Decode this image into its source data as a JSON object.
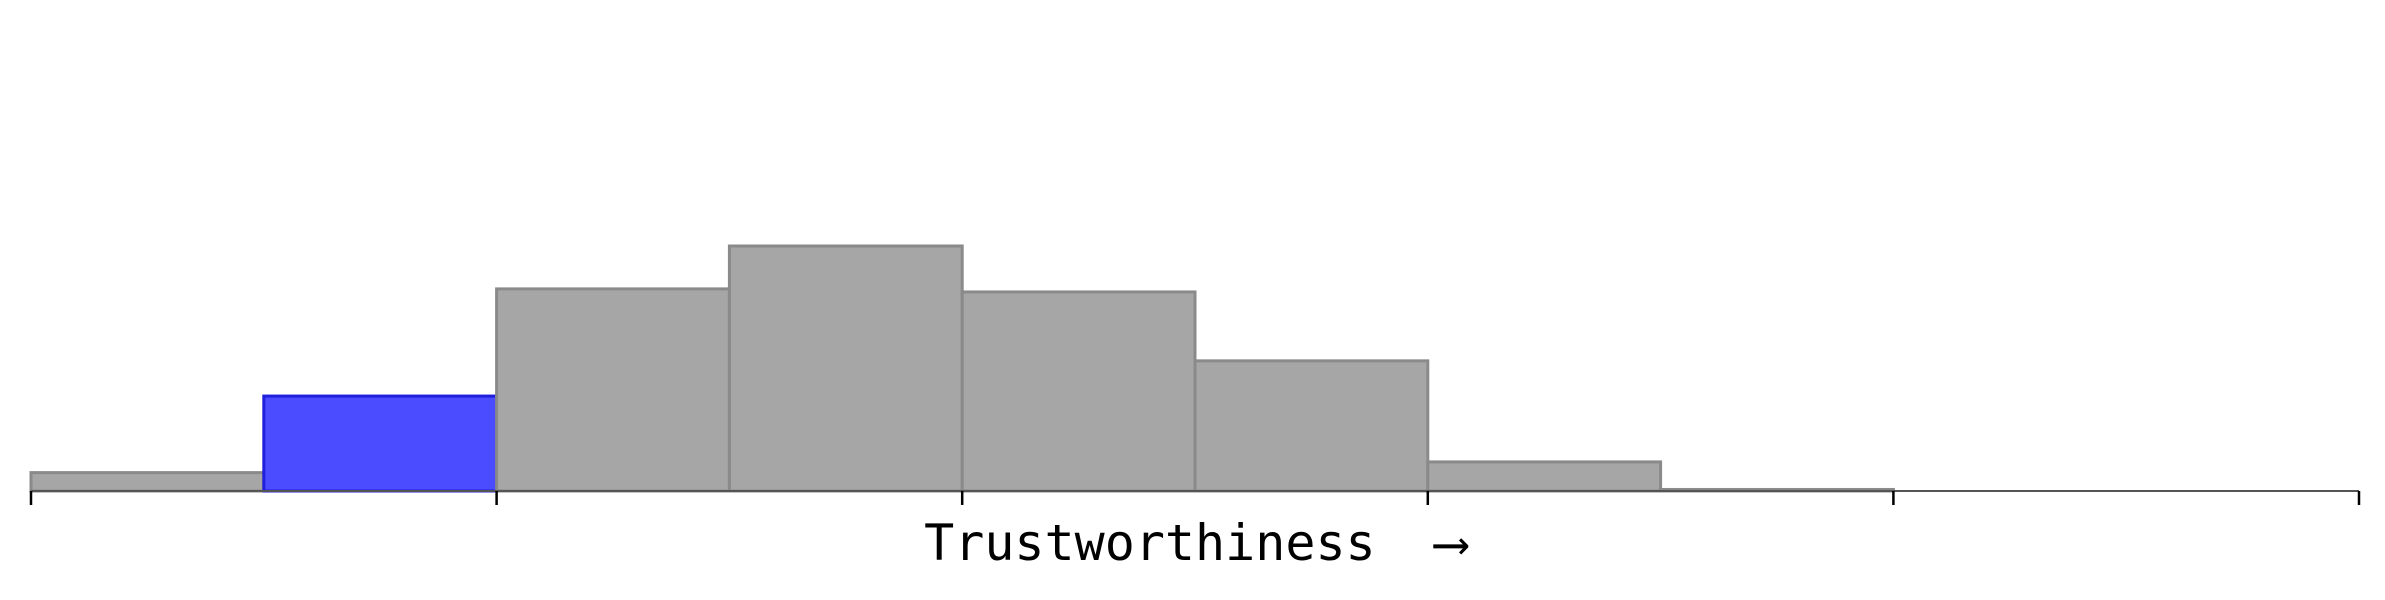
{
  "chart_data": {
    "type": "bar",
    "title": "",
    "xlabel": "Trustworthiness",
    "xlabel_arrow": "⟶",
    "ylabel": "",
    "grid": false,
    "legend": "none",
    "ylim": [
      0,
      0.16
    ],
    "bins": 10,
    "values": [
      0.012,
      0.062,
      0.132,
      0.16,
      0.13,
      0.085,
      0.019,
      0.001,
      0.0,
      0.0
    ],
    "highlight_index": 1,
    "colors": {
      "bar_fill": "#a6a6a6",
      "bar_stroke": "#8a8a8a",
      "highlight_fill": "#4b4bff",
      "highlight_stroke": "#1f1fdd"
    }
  }
}
